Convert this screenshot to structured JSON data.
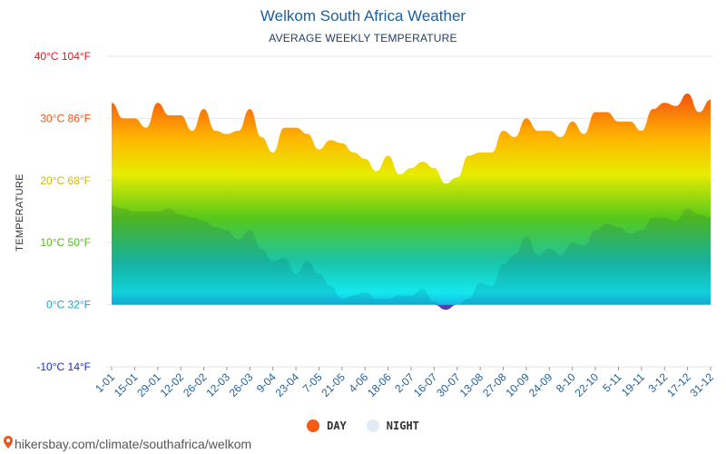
{
  "title": "Welkom South Africa Weather",
  "subtitle": "AVERAGE WEEKLY TEMPERATURE",
  "y_axis_label": "TEMPERATURE",
  "legend": {
    "day": "DAY",
    "night": "NIGHT"
  },
  "footer": {
    "url": "hikersbay.com/climate/southafrica/welkom",
    "icon": "map-pin-icon"
  },
  "colors": {
    "day_legend": "#f45b13",
    "night_legend": "#e2eaf6",
    "title": "#1f5f99"
  },
  "chart_data": {
    "type": "area",
    "title": "Welkom South Africa Weather",
    "subtitle": "AVERAGE WEEKLY TEMPERATURE",
    "ylabel": "TEMPERATURE",
    "ylim": [
      -10,
      40
    ],
    "y_ticks": [
      {
        "value": 40,
        "label": "40°C 104°F",
        "color": "#e8141b"
      },
      {
        "value": 30,
        "label": "30°C 86°F",
        "color": "#f4520e"
      },
      {
        "value": 20,
        "label": "20°C 68°F",
        "color": "#d2b900"
      },
      {
        "value": 10,
        "label": "10°C 50°F",
        "color": "#57b91a"
      },
      {
        "value": 0,
        "label": "0°C 32°F",
        "color": "#1aa6d3"
      },
      {
        "value": -10,
        "label": "-10°C 14°F",
        "color": "#1a2ad8"
      }
    ],
    "x_tick_labels": [
      "1-01",
      "15-01",
      "29-01",
      "12-02",
      "26-02",
      "12-03",
      "26-03",
      "9-04",
      "23-04",
      "7-05",
      "21-05",
      "4-06",
      "18-06",
      "2-07",
      "16-07",
      "30-07",
      "13-08",
      "27-08",
      "10-09",
      "24-09",
      "8-10",
      "22-10",
      "5-11",
      "19-11",
      "3-12",
      "17-12",
      "31-12"
    ],
    "series": [
      {
        "name": "DAY",
        "values": [
          32.5,
          30,
          30,
          28.5,
          32.5,
          30.5,
          30.5,
          28,
          31.5,
          28,
          27.5,
          28,
          31.5,
          27,
          24.5,
          28.5,
          28.5,
          27.5,
          25,
          26.5,
          26,
          24.5,
          23.5,
          21.5,
          24,
          21,
          22,
          23,
          22,
          19.5,
          20.5,
          24,
          24.5,
          24.5,
          28,
          27,
          30,
          28,
          28,
          27,
          29.5,
          27.5,
          31,
          31,
          29.5,
          29.5,
          28,
          31.5,
          32.5,
          32,
          34,
          31,
          33
        ]
      },
      {
        "name": "NIGHT",
        "values": [
          16,
          15.5,
          15,
          15,
          15,
          15.5,
          14.5,
          14,
          13.5,
          12.5,
          12,
          10.5,
          12,
          9,
          7,
          7.5,
          5,
          7,
          5,
          3,
          1,
          1.5,
          2,
          1,
          1,
          1.5,
          1.5,
          2.5,
          0.5,
          -0.8,
          0,
          1,
          3.5,
          3,
          6.5,
          8,
          11,
          8,
          9,
          8,
          10,
          9.5,
          12,
          13,
          12.5,
          11.5,
          12,
          14,
          14,
          13.5,
          15.5,
          14.5,
          14
        ]
      }
    ],
    "legend": "bottom-center",
    "grid": true
  }
}
